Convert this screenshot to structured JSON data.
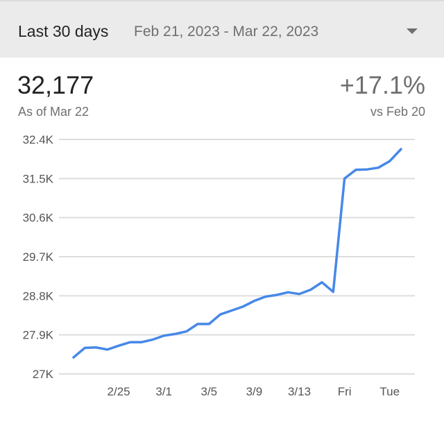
{
  "range": {
    "label": "Last 30 days",
    "dates": "Feb 21, 2023 - Mar 22, 2023",
    "dropdown_icon": "arrow-drop-down-icon"
  },
  "metric": {
    "value": "32,177",
    "as_of": "As of Mar 22"
  },
  "change": {
    "value": "+17.1%",
    "vs": "vs Feb 20"
  },
  "colors": {
    "line": "#4688e8",
    "grid": "#dddddd",
    "header_bg": "#ebebeb"
  },
  "chart_data": {
    "type": "line",
    "title": "",
    "xlabel": "",
    "ylabel": "",
    "ylim": [
      27000,
      32400
    ],
    "yticks": [
      27000,
      27900,
      28800,
      29700,
      30600,
      31500,
      32400
    ],
    "ytick_labels": [
      "27K",
      "27.9K",
      "28.8K",
      "29.7K",
      "30.6K",
      "31.5K",
      "32.4K"
    ],
    "x": [
      "2/21",
      "2/22",
      "2/23",
      "2/24",
      "2/25",
      "2/26",
      "2/27",
      "2/28",
      "3/1",
      "3/2",
      "3/3",
      "3/4",
      "3/5",
      "3/6",
      "3/7",
      "3/8",
      "3/9",
      "3/10",
      "3/11",
      "3/12",
      "3/13",
      "3/14",
      "3/15",
      "3/16",
      "3/17",
      "3/18",
      "3/19",
      "3/20",
      "3/21",
      "3/22"
    ],
    "xtick_labels": [
      {
        "x": "2/25",
        "label": "2/25"
      },
      {
        "x": "3/1",
        "label": "3/1"
      },
      {
        "x": "3/5",
        "label": "3/5"
      },
      {
        "x": "3/9",
        "label": "3/9"
      },
      {
        "x": "3/13",
        "label": "3/13"
      },
      {
        "x": "3/17",
        "label": "Fri"
      },
      {
        "x": "3/21",
        "label": "Tue"
      }
    ],
    "values": [
      27380,
      27600,
      27610,
      27560,
      27650,
      27730,
      27730,
      27790,
      27880,
      27920,
      27980,
      28150,
      28150,
      28370,
      28460,
      28550,
      28680,
      28780,
      28820,
      28880,
      28840,
      28940,
      29110,
      28890,
      31500,
      31700,
      31710,
      31750,
      31900,
      32177
    ],
    "grid": true,
    "legend": "none"
  }
}
